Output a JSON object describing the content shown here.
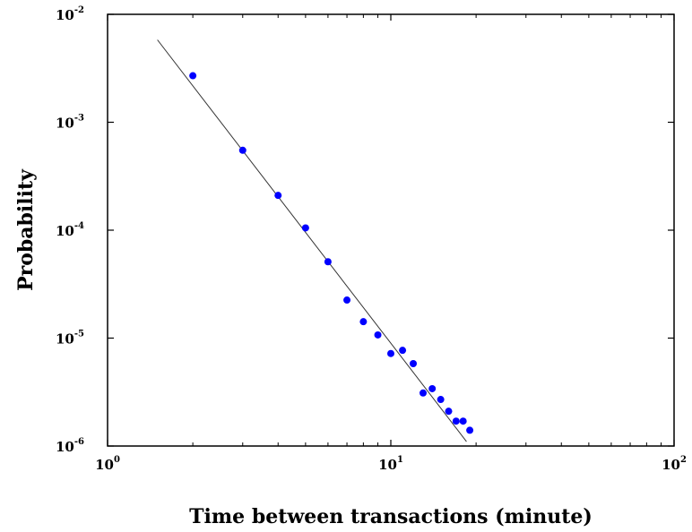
{
  "chart_data": {
    "type": "scatter",
    "xlabel": "Time between transactions (minute)",
    "ylabel": "Probability",
    "xscale": "log",
    "yscale": "log",
    "xlim": [
      1,
      100
    ],
    "ylim": [
      1e-06,
      0.01
    ],
    "grid": false,
    "x_ticks": [
      {
        "value": 1,
        "base": "10",
        "exp": "0"
      },
      {
        "value": 10,
        "base": "10",
        "exp": "1"
      },
      {
        "value": 100,
        "base": "10",
        "exp": "2"
      }
    ],
    "y_ticks": [
      {
        "value": 1e-06,
        "base": "10",
        "exp": "-6"
      },
      {
        "value": 1e-05,
        "base": "10",
        "exp": "-5"
      },
      {
        "value": 0.0001,
        "base": "10",
        "exp": "-4"
      },
      {
        "value": 0.001,
        "base": "10",
        "exp": "-3"
      },
      {
        "value": 0.01,
        "base": "10",
        "exp": "-2"
      }
    ],
    "series": [
      {
        "kind": "markers",
        "color": "#0000ff",
        "x": [
          2,
          3,
          4,
          5,
          6,
          7,
          8,
          9,
          10,
          11,
          12,
          13,
          14,
          15,
          16,
          17,
          18,
          19
        ],
        "y": [
          0.0027,
          0.00055,
          0.00021,
          0.000105,
          5.1e-05,
          2.25e-05,
          1.42e-05,
          1.07e-05,
          7.2e-06,
          7.7e-06,
          5.8e-06,
          3.1e-06,
          3.4e-06,
          2.7e-06,
          2.1e-06,
          1.7e-06,
          1.7e-06,
          1.4e-06
        ]
      },
      {
        "kind": "line",
        "color": "#333333",
        "x": [
          1.5,
          18.5
        ],
        "y": [
          0.0058,
          1.1e-06
        ]
      }
    ]
  }
}
